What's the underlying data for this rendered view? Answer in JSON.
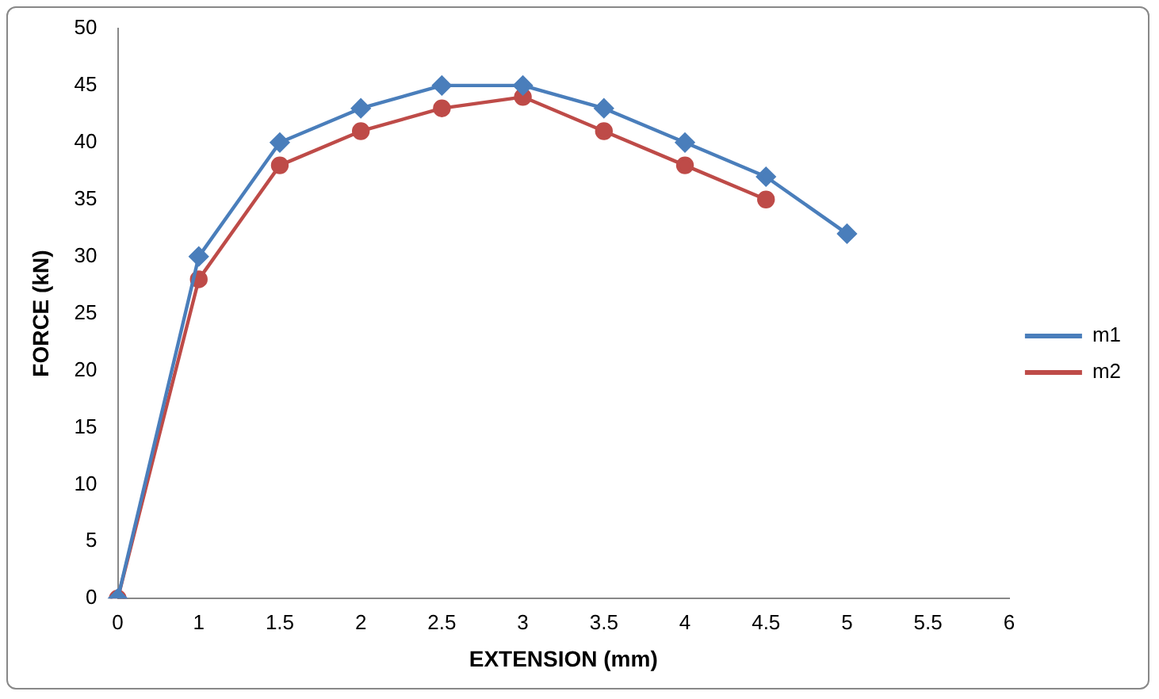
{
  "chart_data": {
    "type": "line",
    "xlabel": "EXTENSION (mm)",
    "ylabel": "FORCE (kN)",
    "categories": [
      "0",
      "1",
      "1.5",
      "2",
      "2.5",
      "3",
      "3.5",
      "4",
      "4.5",
      "5",
      "5.5",
      "6"
    ],
    "series": [
      {
        "name": "m1",
        "color": "#4a7ebb",
        "marker": "diamond",
        "values": [
          0,
          30,
          40,
          43,
          45,
          45,
          43,
          40,
          37,
          32,
          null,
          null
        ]
      },
      {
        "name": "m2",
        "color": "#be4b48",
        "marker": "circle",
        "values": [
          0,
          28,
          38,
          41,
          43,
          44,
          41,
          38,
          35,
          null,
          null,
          null
        ]
      }
    ],
    "ylim": [
      0,
      50
    ],
    "yticks": [
      0,
      5,
      10,
      15,
      20,
      25,
      30,
      35,
      40,
      45,
      50
    ],
    "grid": false,
    "legend": "right",
    "line_style": "solid"
  }
}
